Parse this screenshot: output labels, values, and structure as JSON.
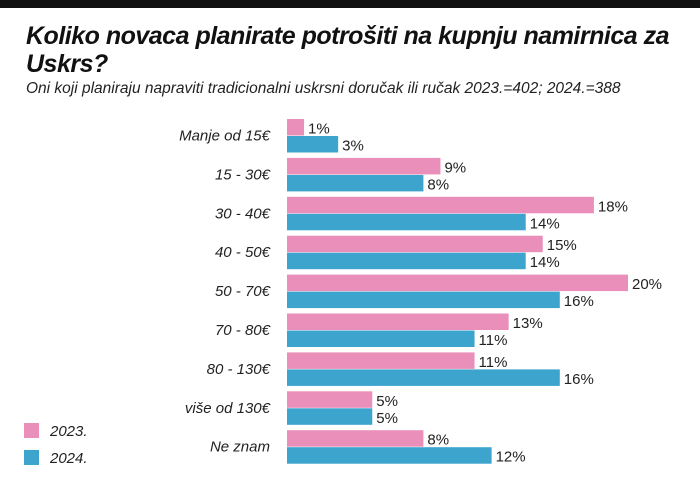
{
  "title": "Koliko novaca planirate potrošiti na kupnju namirnica za Uskrs?",
  "subtitle": "Oni koji planiraju napraviti tradicionalni uskrsni doručak ili ručak 2023.=402; 2024.=388",
  "chart_data": {
    "type": "bar",
    "orientation": "horizontal",
    "title": "Koliko novaca planirate potrošiti na kupnju namirnica za Uskrs?",
    "categories": [
      "Manje od 15€",
      "15 - 30€",
      "30 - 40€",
      "40 - 50€",
      "50 - 70€",
      "70 - 80€",
      "80 - 130€",
      "više od 130€",
      "Ne znam"
    ],
    "series": [
      {
        "name": "2023.",
        "color": "#e98fb9",
        "values": [
          1,
          9,
          18,
          15,
          20,
          13,
          11,
          5,
          8
        ]
      },
      {
        "name": "2024.",
        "color": "#3ca4cd",
        "values": [
          3,
          8,
          14,
          14,
          16,
          11,
          16,
          5,
          12
        ]
      }
    ],
    "value_suffix": "%",
    "xlim": [
      0,
      20
    ],
    "legend": "bottom-left"
  }
}
